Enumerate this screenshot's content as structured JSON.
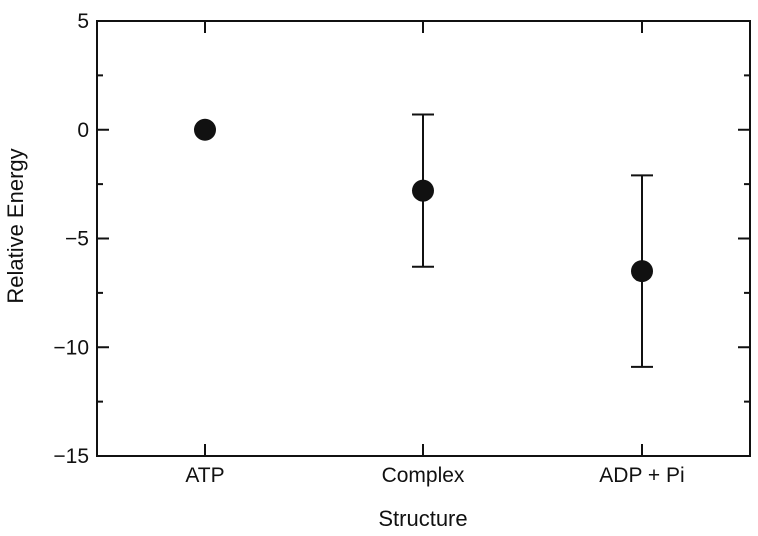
{
  "chart_data": {
    "type": "scatter",
    "title": "",
    "xlabel": "Structure",
    "ylabel": "Relative Energy",
    "categories": [
      "ATP",
      "Complex",
      "ADP + Pi"
    ],
    "series": [
      {
        "values": [
          0,
          -2.8,
          -6.5
        ],
        "error_low": [
          0,
          -6.3,
          -10.9
        ],
        "error_high": [
          0,
          0.7,
          -2.1
        ]
      }
    ],
    "ylim": [
      -15,
      5
    ],
    "yticks": [
      5,
      0,
      -5,
      -10,
      -15
    ],
    "ytick_labels": [
      "5",
      "0",
      "−5",
      "−10",
      "−15"
    ],
    "grid": false,
    "legend": "none",
    "marker_color": "#111111"
  }
}
